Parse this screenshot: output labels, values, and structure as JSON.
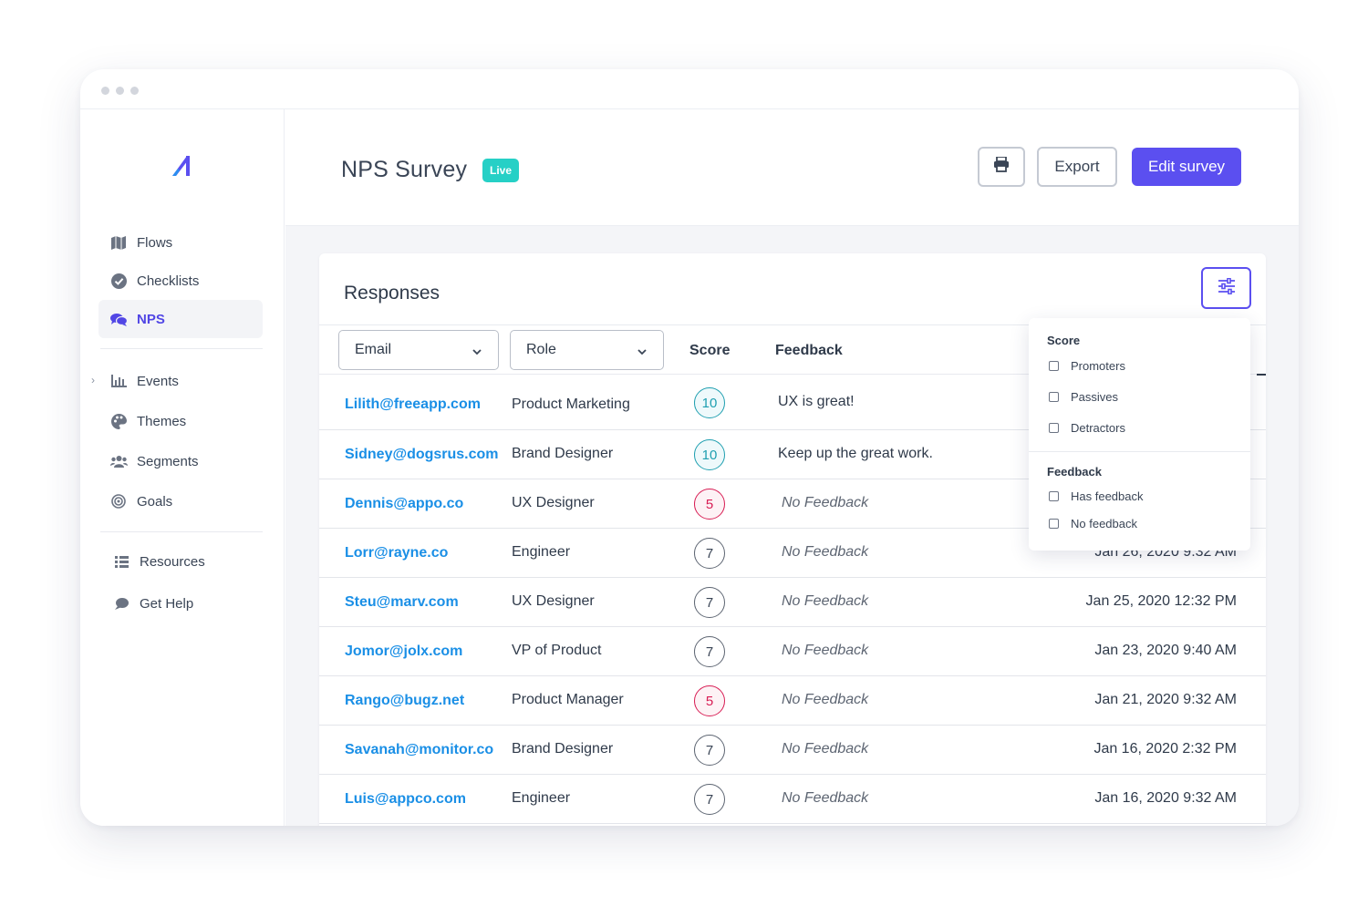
{
  "window": {
    "dots": [
      "dot",
      "dot",
      "dot"
    ]
  },
  "sidebar": {
    "logo": "app-logo-icon",
    "items": [
      {
        "label": "Flows",
        "icon": "map-icon",
        "active": false
      },
      {
        "label": "Checklists",
        "icon": "check-circle-icon",
        "active": false
      },
      {
        "label": "NPS",
        "icon": "chat-bubbles-icon",
        "active": true
      },
      {
        "label": "Events",
        "icon": "bar-chart-icon",
        "active": false,
        "expandable": true
      },
      {
        "label": "Themes",
        "icon": "palette-icon",
        "active": false
      },
      {
        "label": "Segments",
        "icon": "users-icon",
        "active": false
      },
      {
        "label": "Goals",
        "icon": "target-icon",
        "active": false
      },
      {
        "label": "Resources",
        "icon": "list-icon",
        "active": false
      },
      {
        "label": "Get Help",
        "icon": "chat-icon",
        "active": false
      }
    ]
  },
  "header": {
    "title": "NPS Survey",
    "badge": "Live",
    "print_icon": "printer-icon",
    "export_label": "Export",
    "edit_label": "Edit survey"
  },
  "responses": {
    "title": "Responses",
    "filter_icon": "sliders-icon",
    "filters": {
      "email_label": "Email",
      "role_label": "Role"
    },
    "columns": {
      "score": "Score",
      "feedback": "Feedback"
    },
    "rows": [
      {
        "email": "Lilith@freeapp.com",
        "role": "Product Marketing",
        "score": "10",
        "kind": "promoter",
        "feedback": "UX is great!",
        "date": ""
      },
      {
        "email": "Sidney@dogsrus.com",
        "role": "Brand Designer",
        "score": "10",
        "kind": "promoter",
        "feedback": "Keep up the great work.",
        "date": ""
      },
      {
        "email": "Dennis@appo.co",
        "role": "UX Designer",
        "score": "5",
        "kind": "detractor",
        "feedback": "No Feedback",
        "date": ""
      },
      {
        "email": "Lorr@rayne.co",
        "role": "Engineer",
        "score": "7",
        "kind": "passive",
        "feedback": "No Feedback",
        "date": "Jan 26, 2020 9:32 AM"
      },
      {
        "email": "Steu@marv.com",
        "role": "UX Designer",
        "score": "7",
        "kind": "passive",
        "feedback": "No Feedback",
        "date": "Jan 25, 2020 12:32 PM"
      },
      {
        "email": "Jomor@jolx.com",
        "role": "VP of Product",
        "score": "7",
        "kind": "passive",
        "feedback": "No Feedback",
        "date": "Jan 23, 2020 9:40 AM"
      },
      {
        "email": "Rango@bugz.net",
        "role": "Product Manager",
        "score": "5",
        "kind": "detractor",
        "feedback": "No Feedback",
        "date": "Jan 21, 2020 9:32 AM"
      },
      {
        "email": "Savanah@monitor.co",
        "role": "Brand Designer",
        "score": "7",
        "kind": "passive",
        "feedback": "No Feedback",
        "date": "Jan 16, 2020 2:32 PM"
      },
      {
        "email": "Luis@appco.com",
        "role": "Engineer",
        "score": "7",
        "kind": "passive",
        "feedback": "No Feedback",
        "date": "Jan 16, 2020 9:32 AM"
      }
    ]
  },
  "filter_popover": {
    "score_heading": "Score",
    "score_options": [
      "Promoters",
      "Passives",
      "Detractors"
    ],
    "feedback_heading": "Feedback",
    "feedback_options": [
      "Has feedback",
      "No feedback"
    ]
  },
  "colors": {
    "accent": "#5b4ff0",
    "link": "#1a8fe6",
    "live": "#26d0c6",
    "promoter": "#1f9fb0",
    "detractor": "#d81d54",
    "passive": "#5d6572"
  }
}
